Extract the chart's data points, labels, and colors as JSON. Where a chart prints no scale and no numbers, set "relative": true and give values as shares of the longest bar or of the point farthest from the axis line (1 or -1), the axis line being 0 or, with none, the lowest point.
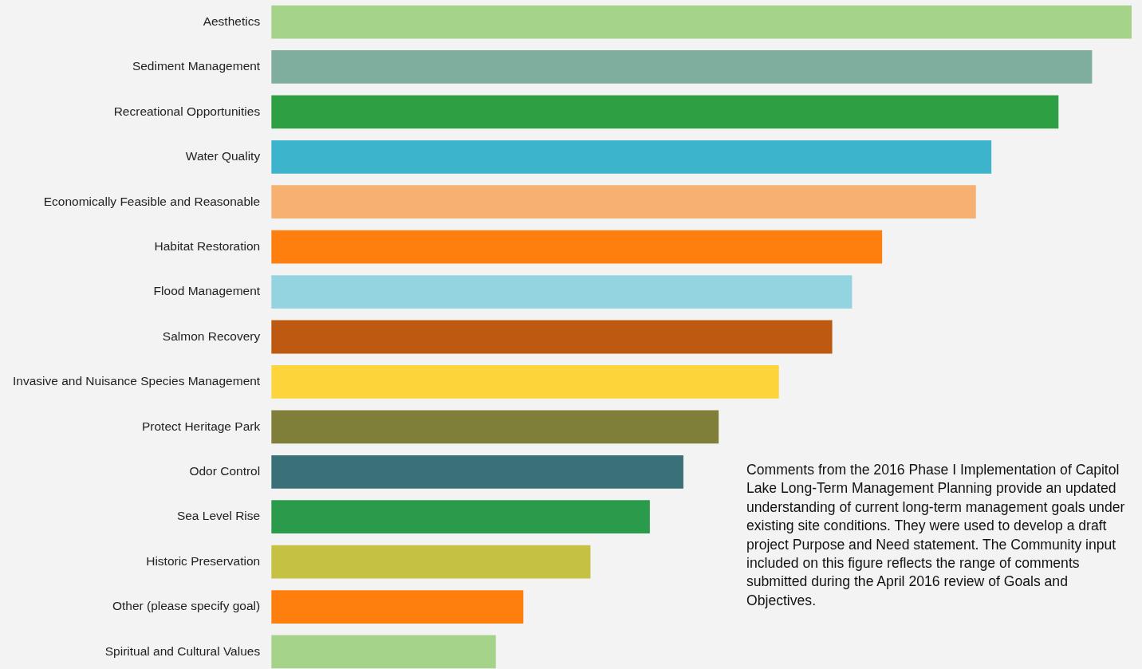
{
  "chart_data": {
    "type": "bar",
    "orientation": "horizontal",
    "relative": true,
    "categories": [
      "Aesthetics",
      "Sediment Management",
      "Recreational Opportunities",
      "Water Quality",
      "Economically Feasible and Reasonable",
      "Habitat Restoration",
      "Flood Management",
      "Salmon Recovery",
      "Invasive and Nuisance Species Management",
      "Protect Heritage Park",
      "Odor Control",
      "Sea Level Rise",
      "Historic Preservation",
      "Other (please specify goal)",
      "Spiritual and Cultural Values"
    ],
    "values": [
      1,
      0.954,
      0.915,
      0.837,
      0.819,
      0.71,
      0.675,
      0.652,
      0.59,
      0.52,
      0.479,
      0.44,
      0.371,
      0.293,
      0.261
    ],
    "colors": [
      "#a6d38a",
      "#7fae9f",
      "#2ea043",
      "#3cb4cc",
      "#f6b172",
      "#ff7f0e",
      "#94d3e0",
      "#bd5910",
      "#fdd53b",
      "#7f7f3a",
      "#3a7178",
      "#2a9b4a",
      "#c5c143",
      "#ff7f0e",
      "#a6d38a"
    ],
    "annotations": [
      "Comments from the 2016 Phase I Implementation of Capitol Lake Long-Term Management Planning provide an updated understanding of current long-term management goals under existing site conditions. They were used to develop a draft project Purpose and Need statement. The Community input included on this figure reflects the range of comments submitted during the April 2016 review of Goals and Objectives."
    ]
  }
}
